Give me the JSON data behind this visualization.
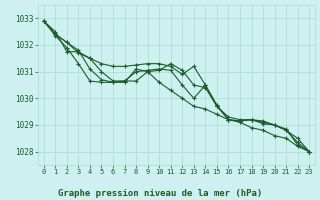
{
  "title": "Graphe pression niveau de la mer (hPa)",
  "background_color": "#cff0f0",
  "grid_color": "#aaddcc",
  "line_color": "#1a5c2a",
  "marker_color": "#1a5c2a",
  "xlim": [
    -0.5,
    23.5
  ],
  "ylim": [
    1027.5,
    1033.5
  ],
  "yticks": [
    1028,
    1029,
    1030,
    1031,
    1032,
    1033
  ],
  "xticks": [
    0,
    1,
    2,
    3,
    4,
    5,
    6,
    7,
    8,
    9,
    10,
    11,
    12,
    13,
    14,
    15,
    16,
    17,
    18,
    19,
    20,
    21,
    22,
    23
  ],
  "series": [
    [
      1032.9,
      1032.4,
      1032.1,
      1031.8,
      1031.1,
      1030.7,
      1030.6,
      1030.6,
      1031.1,
      1031.0,
      1030.6,
      1030.3,
      1030.0,
      1029.7,
      1029.6,
      1029.4,
      1029.2,
      1029.1,
      1028.9,
      1028.8,
      1028.6,
      1028.5,
      1028.2,
      1028.0
    ],
    [
      1032.9,
      1032.4,
      1032.1,
      1031.7,
      1031.5,
      1031.0,
      1030.65,
      1030.65,
      1031.0,
      1031.05,
      1031.1,
      1031.05,
      1030.5,
      1030.0,
      1030.5,
      1029.7,
      1029.3,
      1029.2,
      1029.2,
      1029.1,
      1029.0,
      1028.8,
      1028.5,
      1028.0
    ],
    [
      1032.9,
      1032.5,
      1031.75,
      1031.75,
      1031.5,
      1031.3,
      1031.2,
      1031.2,
      1031.25,
      1031.3,
      1031.3,
      1031.2,
      1030.9,
      1031.2,
      1030.5,
      1029.75,
      1029.2,
      1029.15,
      1029.2,
      1029.15,
      1029.0,
      1028.8,
      1028.35,
      1028.0
    ],
    [
      1032.9,
      1032.35,
      1031.9,
      1031.3,
      1030.65,
      1030.6,
      1030.6,
      1030.65,
      1030.65,
      1031.0,
      1031.05,
      1031.3,
      1031.05,
      1030.5,
      1030.4,
      1029.7,
      1029.2,
      1029.15,
      1029.2,
      1029.05,
      1029.0,
      1028.85,
      1028.25,
      1028.0
    ]
  ]
}
